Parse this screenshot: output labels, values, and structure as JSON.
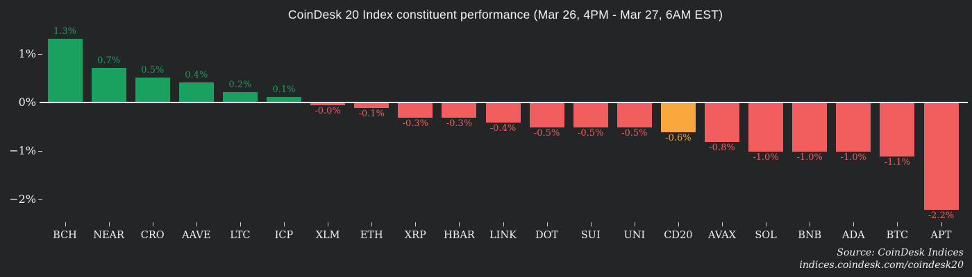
{
  "chart_data": {
    "type": "bar",
    "title": "CoinDesk 20 Index constituent performance (Mar 26, 4PM - Mar 27, 6AM EST)",
    "categories": [
      "BCH",
      "NEAR",
      "CRO",
      "AAVE",
      "LTC",
      "ICP",
      "XLM",
      "ETH",
      "XRP",
      "HBAR",
      "LINK",
      "DOT",
      "SUI",
      "UNI",
      "CD20",
      "AVAX",
      "SOL",
      "BNB",
      "ADA",
      "BTC",
      "APT"
    ],
    "values": [
      1.3,
      0.7,
      0.5,
      0.4,
      0.2,
      0.1,
      -0.0,
      -0.1,
      -0.3,
      -0.3,
      -0.4,
      -0.5,
      -0.5,
      -0.5,
      -0.6,
      -0.8,
      -1.0,
      -1.0,
      -1.0,
      -1.1,
      -2.2
    ],
    "value_labels": [
      "1.3%",
      "0.7%",
      "0.5%",
      "0.4%",
      "0.2%",
      "0.1%",
      "-0.0%",
      "-0.1%",
      "-0.3%",
      "-0.3%",
      "-0.4%",
      "-0.5%",
      "-0.5%",
      "-0.5%",
      "-0.6%",
      "-0.8%",
      "-1.0%",
      "-1.0%",
      "-1.0%",
      "-1.1%",
      "-2.2%"
    ],
    "bar_colors": [
      "#18a15f",
      "#18a15f",
      "#18a15f",
      "#18a15f",
      "#18a15f",
      "#18a15f",
      "#f25e5e",
      "#f25e5e",
      "#f25e5e",
      "#f25e5e",
      "#f25e5e",
      "#f25e5e",
      "#f25e5e",
      "#f25e5e",
      "#f9a83d",
      "#f25e5e",
      "#f25e5e",
      "#f25e5e",
      "#f25e5e",
      "#f25e5e",
      "#f25e5e"
    ],
    "xlabel": "",
    "ylabel": "",
    "ylim": [
      -2.45,
      1.55
    ],
    "grid": false,
    "legend": "none",
    "y_ticks": [
      {
        "label": "1%",
        "value": 1
      },
      {
        "label": "0%",
        "value": 0
      },
      {
        "label": "−1%",
        "value": -1
      },
      {
        "label": "−2%",
        "value": -2
      }
    ]
  },
  "colors": {
    "background": "#242527",
    "positive": "#18a15f",
    "negative": "#f25e5e",
    "highlight_cd20": "#f9a83d",
    "zero_line": "#ffffff",
    "text": "#f0f0f0"
  },
  "source": {
    "line1": "Source: CoinDesk Indices",
    "line2": "indices.coindesk.com/coindesk20"
  }
}
